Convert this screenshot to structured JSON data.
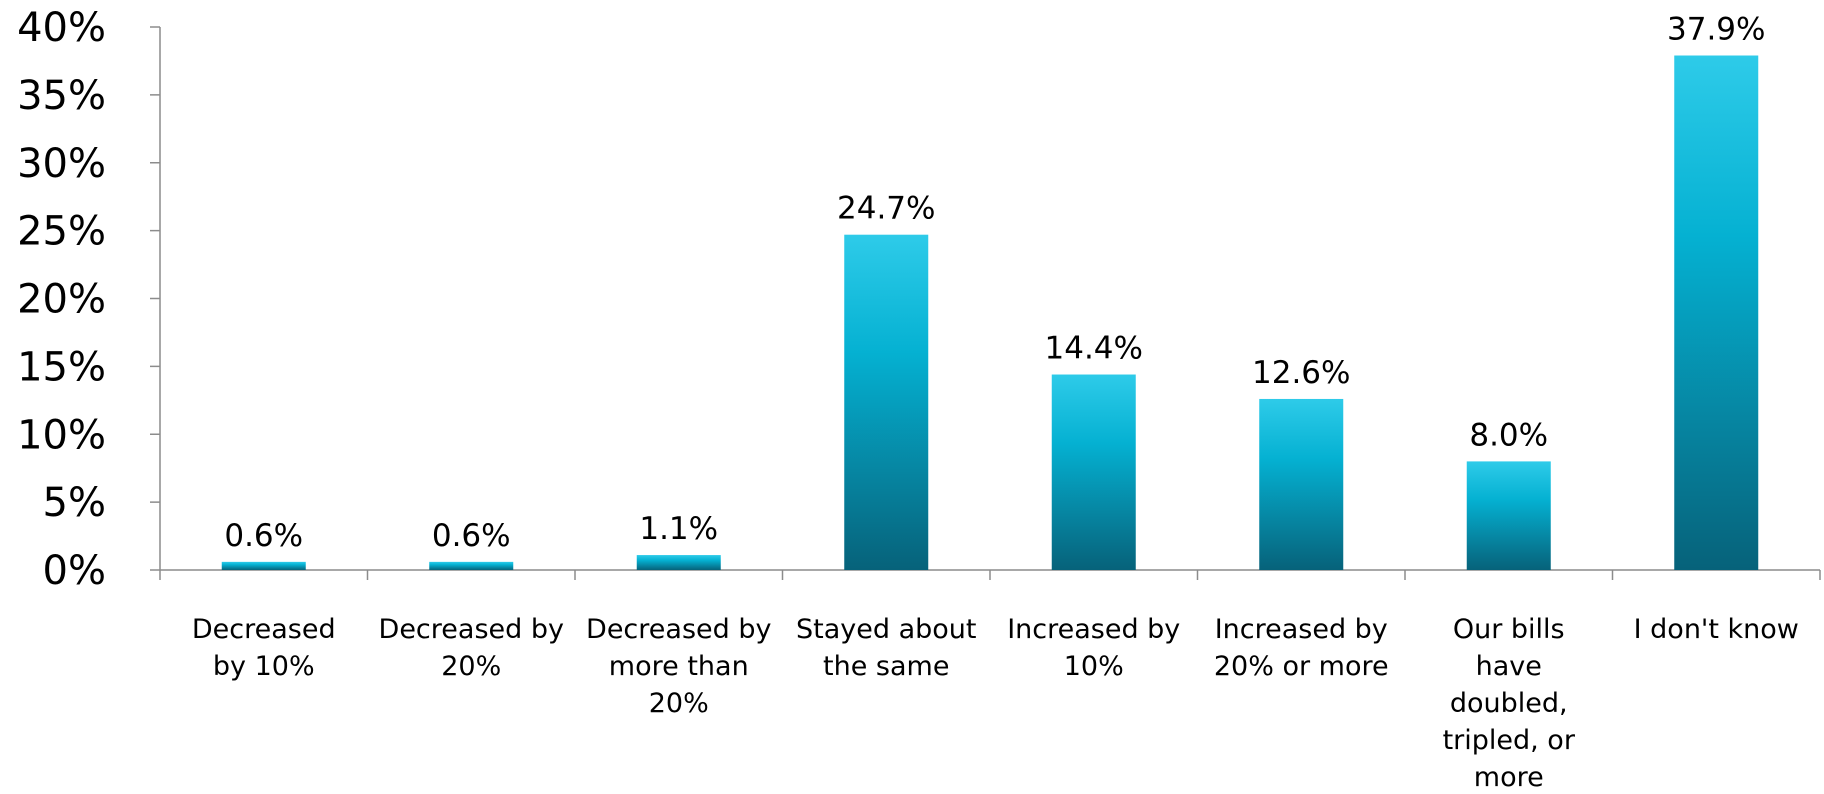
{
  "chart_data": {
    "type": "bar",
    "categories": [
      [
        "Decreased",
        "by 10%"
      ],
      [
        "Decreased by",
        "20%"
      ],
      [
        "Decreased by",
        "more than",
        "20%"
      ],
      [
        "Stayed about",
        "the same"
      ],
      [
        "Increased by",
        "10%"
      ],
      [
        "Increased by",
        "20% or more"
      ],
      [
        "Our bills",
        "have",
        "doubled,",
        "tripled, or",
        "more"
      ],
      [
        "I don't know"
      ]
    ],
    "values": [
      0.6,
      0.6,
      1.1,
      24.7,
      14.4,
      12.6,
      8.0,
      37.9
    ],
    "data_labels": [
      "0.6%",
      "0.6%",
      "1.1%",
      "24.7%",
      "14.4%",
      "12.6%",
      "8.0%",
      "37.9%"
    ],
    "ylim": [
      0,
      40
    ],
    "yticks": [
      0,
      5,
      10,
      15,
      20,
      25,
      30,
      35,
      40
    ],
    "ytick_labels": [
      "0%",
      "5%",
      "10%",
      "15%",
      "20%",
      "25%",
      "30%",
      "35%",
      "40%"
    ],
    "title": "",
    "xlabel": "",
    "ylabel": "",
    "grid": false,
    "legend": "none",
    "colors": {
      "bar_top": "#2ecbe9",
      "bar_mid": "#05b1d2",
      "bar_bottom": "#06627a",
      "axis": "#8c8c8c",
      "text": "#000000"
    }
  }
}
